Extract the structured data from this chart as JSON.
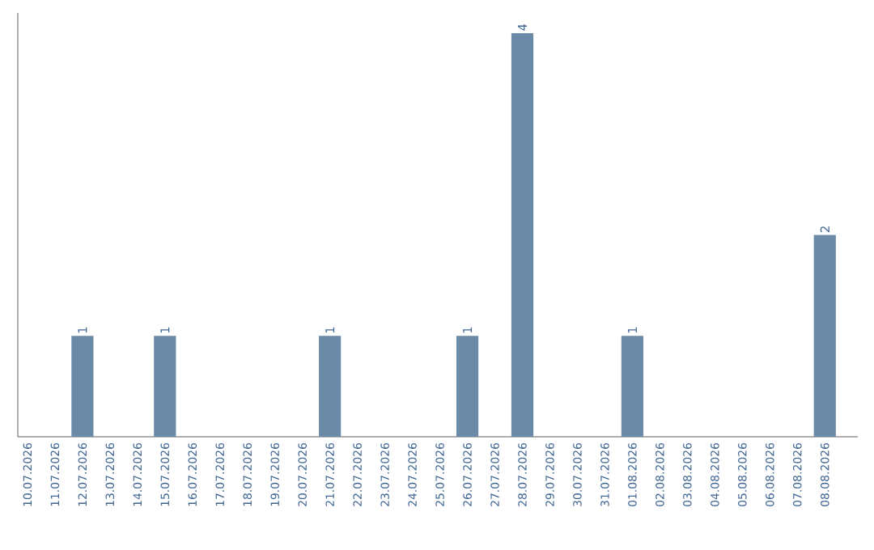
{
  "chart_data": {
    "type": "bar",
    "categories": [
      "10.07.2026",
      "11.07.2026",
      "12.07.2026",
      "13.07.2026",
      "14.07.2026",
      "15.07.2026",
      "16.07.2026",
      "17.07.2026",
      "18.07.2026",
      "19.07.2026",
      "20.07.2026",
      "21.07.2026",
      "22.07.2026",
      "23.07.2026",
      "24.07.2026",
      "25.07.2026",
      "26.07.2026",
      "27.07.2026",
      "28.07.2026",
      "29.07.2026",
      "30.07.2026",
      "31.07.2026",
      "01.08.2026",
      "02.08.2026",
      "03.08.2026",
      "04.08.2026",
      "05.08.2026",
      "06.08.2026",
      "07.08.2026",
      "08.08.2026"
    ],
    "values": [
      0,
      0,
      1,
      0,
      0,
      1,
      0,
      0,
      0,
      0,
      0,
      1,
      0,
      0,
      0,
      0,
      1,
      0,
      4,
      0,
      0,
      0,
      1,
      0,
      0,
      0,
      0,
      0,
      0,
      2
    ],
    "value_labels": [
      null,
      null,
      "1",
      null,
      null,
      "1",
      null,
      null,
      null,
      null,
      null,
      "1",
      null,
      null,
      null,
      null,
      "1",
      null,
      "4",
      null,
      null,
      null,
      "1",
      null,
      null,
      null,
      null,
      null,
      null,
      "2"
    ],
    "color": "#6b8aa8",
    "ylim": [
      0,
      4.2
    ],
    "tick_labels": "x"
  }
}
